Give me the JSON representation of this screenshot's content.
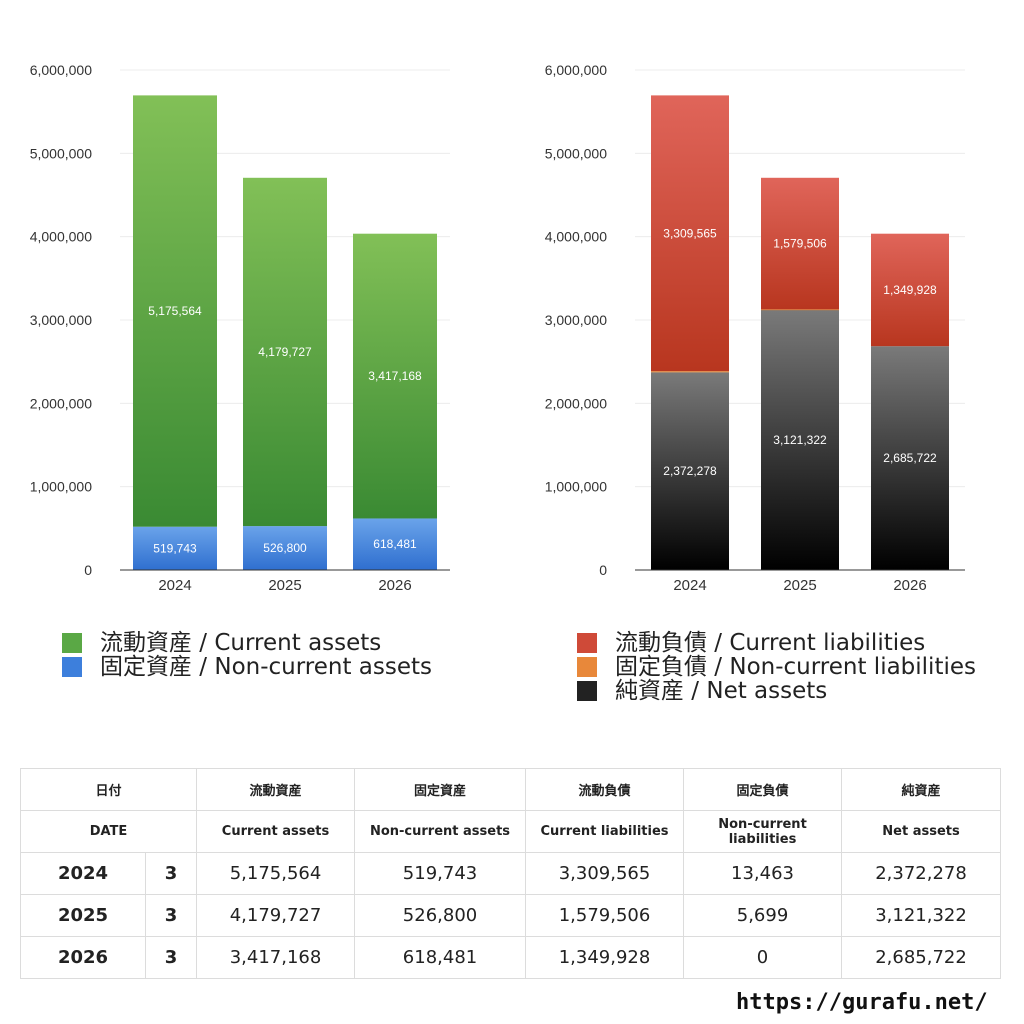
{
  "chart_data": [
    {
      "type": "bar",
      "stacked": true,
      "categories": [
        "2024",
        "2025",
        "2026"
      ],
      "ylim": [
        0,
        6000000
      ],
      "yticks": [
        "0",
        "1,000,000",
        "2,000,000",
        "3,000,000",
        "4,000,000",
        "5,000,000",
        "6,000,000"
      ],
      "grid": true,
      "series": [
        {
          "name": "固定資産 / Non-current assets",
          "values": [
            519743,
            526800,
            618481
          ],
          "labels": [
            "519,743",
            "526,800",
            "618,481"
          ],
          "color_top": "#6aa3ea",
          "color_bottom": "#2f6fcf"
        },
        {
          "name": "流動資産 / Current assets",
          "values": [
            5175564,
            4179727,
            3417168
          ],
          "labels": [
            "5,175,564",
            "4,179,727",
            "3,417,168"
          ],
          "color_top": "#82c057",
          "color_bottom": "#3a8a33"
        }
      ]
    },
    {
      "type": "bar",
      "stacked": true,
      "categories": [
        "2024",
        "2025",
        "2026"
      ],
      "ylim": [
        0,
        6000000
      ],
      "yticks": [
        "0",
        "1,000,000",
        "2,000,000",
        "3,000,000",
        "4,000,000",
        "5,000,000",
        "6,000,000"
      ],
      "grid": true,
      "series": [
        {
          "name": "純資産 / Net assets",
          "values": [
            2372278,
            3121322,
            2685722
          ],
          "labels": [
            "2,372,278",
            "3,121,322",
            "2,685,722"
          ],
          "color_top": "#7a7a7a",
          "color_bottom": "#000000"
        },
        {
          "name": "固定負債 / Non-current liabilities",
          "values": [
            13463,
            5699,
            0
          ],
          "labels": [
            "13,463",
            "5,699",
            ""
          ],
          "color_top": "#f0a050",
          "color_bottom": "#d97a2a"
        },
        {
          "name": "流動負債 / Current liabilities",
          "values": [
            3309565,
            1579506,
            1349928
          ],
          "labels": [
            "3,309,565",
            "1,579,506",
            "1,349,928"
          ],
          "color_top": "#e0655a",
          "color_bottom": "#b8361f"
        }
      ]
    }
  ],
  "legend_left": [
    {
      "label": "流動資産 / Current assets",
      "color": "#5aa845"
    },
    {
      "label": "固定資産 / Non-current assets",
      "color": "#3d7fdc"
    }
  ],
  "legend_right": [
    {
      "label": "流動負債 / Current liabilities",
      "color": "#cf4a38"
    },
    {
      "label": "固定負債 / Non-current liabilities",
      "color": "#e8883a"
    },
    {
      "label": "純資産 / Net assets",
      "color": "#222222"
    }
  ],
  "table": {
    "header_jp": [
      "日付",
      "流動資産",
      "固定資産",
      "流動負債",
      "固定負債",
      "純資産"
    ],
    "header_en": [
      "DATE",
      "Current assets",
      "Non-current assets",
      "Current liabilities",
      "Non-current liabilities",
      "Net assets"
    ],
    "rows": [
      {
        "year": "2024",
        "month": "3",
        "cells": [
          "5,175,564",
          "519,743",
          "3,309,565",
          "13,463",
          "2,372,278"
        ]
      },
      {
        "year": "2025",
        "month": "3",
        "cells": [
          "4,179,727",
          "526,800",
          "1,579,506",
          "5,699",
          "3,121,322"
        ]
      },
      {
        "year": "2026",
        "month": "3",
        "cells": [
          "3,417,168",
          "618,481",
          "1,349,928",
          "0",
          "2,685,722"
        ]
      }
    ]
  },
  "site": "https://gurafu.net/"
}
